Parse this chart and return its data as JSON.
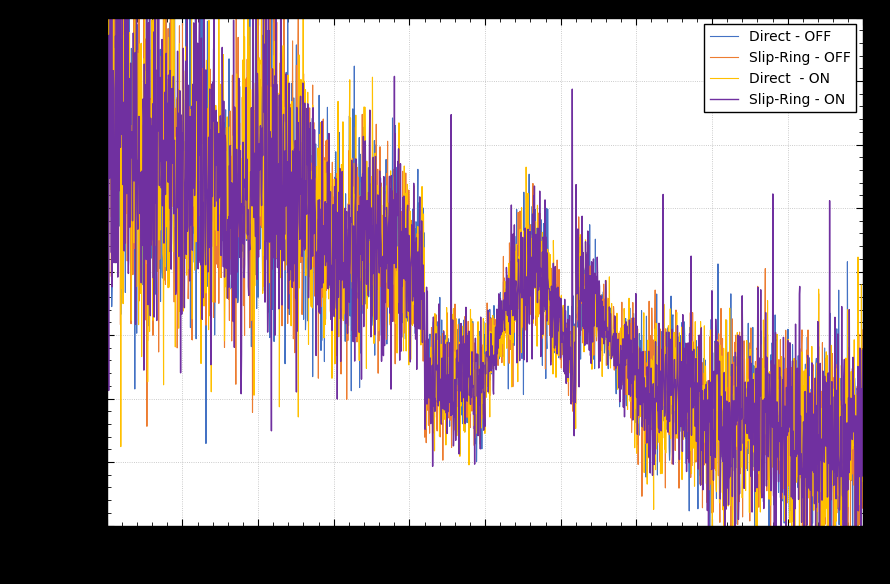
{
  "title": "",
  "xlabel": "",
  "ylabel": "",
  "legend": [
    "Direct - OFF",
    "Slip-Ring - OFF",
    "Direct  - ON",
    "Slip-Ring - ON"
  ],
  "colors": [
    "#4472C4",
    "#ED7D31",
    "#FFC000",
    "#7030A0"
  ],
  "linewidths": [
    0.8,
    0.8,
    0.8,
    1.0
  ],
  "background_color": "#000000",
  "plot_bg_color": "#FFFFFF",
  "grid_color": "#AAAAAA",
  "n_points": 2000,
  "seed": 42,
  "figsize": [
    8.9,
    5.84
  ],
  "dpi": 100
}
